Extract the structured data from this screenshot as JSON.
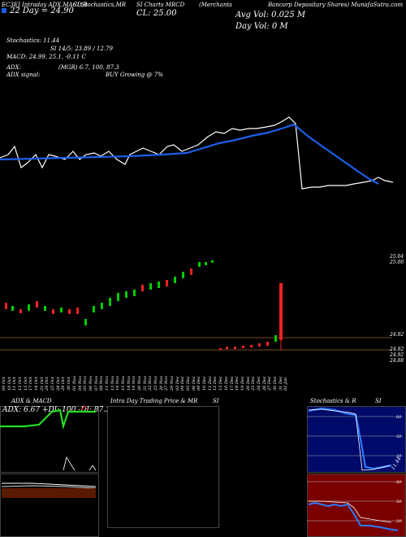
{
  "header": {
    "tab_line_1": "EC3EJ Intraday ADX,MACD,B",
    "tab_line_2": "SI,Stochastics,MR",
    "tab_line_3": "SI Charts MRCD",
    "tab_line_4": "(Merchants",
    "tab_line_5": "Bancorp Depositary Shares) MunafaSutra.com",
    "date_label": "22 Day = 24.90",
    "close_label": "CL: 25.00",
    "avg_vol": "Avg Vol: 0.025  M",
    "day_vol": "Day Vol: 0   M"
  },
  "indicators": {
    "stochastics": "Stochastics: 11.44",
    "si": "SI 14/5: 23.89 / 12.79",
    "macd": "MACD: 24.99, 25.1, -0.11 C",
    "adx": "ADX:",
    "adx_values": "(MGR) 6.7, 100, 87.3",
    "adx_signal_label": "ADX  signal:",
    "adx_signal_value": "BUY Growing @ 7%"
  },
  "price_axis": {
    "top_a": "25.04",
    "top_b": "25.00",
    "low_a": "24.92",
    "low_b": "24.92",
    "low_c": "24.92",
    "low_d": "24.88"
  },
  "dates": [
    "09 Oct",
    "10 Oct",
    "11 Oct",
    "13 Oct",
    "15 Oct",
    "17 Oct",
    "18 Oct",
    "21 Oct",
    "24 Oct",
    "25 Oct",
    "28 Oct",
    "29 Oct",
    "30 Oct",
    "01 Nov",
    "04 Nov",
    "05 Nov",
    "06 Nov",
    "07 Nov",
    "08 Nov",
    "11 Nov",
    "13 Nov",
    "14 Nov",
    "15 Nov",
    "18 Nov",
    "19 Nov",
    "20 Nov",
    "21 Nov",
    "22 Nov",
    "25 Nov",
    "26 Nov",
    "27 Nov",
    "29 Nov",
    "03 Dec",
    "04 Dec",
    "05 Dec",
    "06 Dec",
    "09 Dec",
    "10 Dec",
    "11 Dec",
    "12 Dec",
    "13 Dec",
    "16 Dec",
    "17 Dec",
    "18 Dec",
    "19 Dec",
    "20 Dec",
    "23 Dec",
    "24 Dec",
    "26 Dec",
    "27 Dec",
    "30 Dec",
    "31 Dec",
    "02 Jan"
  ],
  "panels": {
    "adx_title": "ADX  & MACD",
    "adx_readout": "ADX: 6.67  +DI: 100  -DI: 87.3",
    "intraday_title": "Intra  Day Trading Price  & MR",
    "si_title": "SI",
    "stoch_title": "Stochastics & R",
    "stoch_si_title": "SI",
    "stoch_levels": [
      "80",
      "50",
      "20"
    ],
    "stoch_value": "11.44",
    "rsi_levels": [
      "80",
      "50",
      "20"
    ]
  },
  "colors": {
    "price_line": "#ffffff",
    "ma_line": "#1e5ee8",
    "up_candle": "#00cc00",
    "down_candle": "#ee2222",
    "adx_green": "#22dd22"
  }
}
